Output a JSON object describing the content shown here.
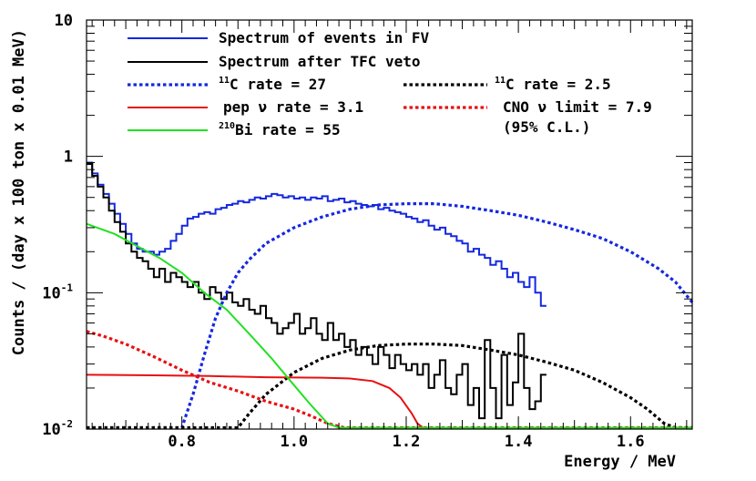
{
  "chart_data": {
    "type": "line",
    "xlabel": "Energy / MeV",
    "ylabel": "Counts / (day x 100 ton x 0.01 MeV)",
    "xlim": [
      0.63,
      1.71
    ],
    "ylim": [
      0.01,
      10
    ],
    "yscale": "log",
    "x_ticks": [
      {
        "value": 0.8,
        "label": "0.8"
      },
      {
        "value": 1.0,
        "label": "1.0"
      },
      {
        "value": 1.2,
        "label": "1.2"
      },
      {
        "value": 1.4,
        "label": "1.4"
      },
      {
        "value": 1.6,
        "label": "1.6"
      }
    ],
    "y_ticks": [
      {
        "value": 0.01,
        "base": "10",
        "exp": "-2"
      },
      {
        "value": 0.1,
        "base": "10",
        "exp": "-1"
      },
      {
        "value": 1,
        "base": "1",
        "exp": ""
      },
      {
        "value": 10,
        "base": "10",
        "exp": ""
      }
    ],
    "legend": [
      {
        "id": "fv",
        "text": "Spectrum of events in FV",
        "sup": "",
        "color": "#1428e0",
        "style": "solid"
      },
      {
        "id": "tfc",
        "text": "Spectrum after TFC veto",
        "sup": "",
        "color": "#000000",
        "style": "solid"
      },
      {
        "id": "c11",
        "sup": "11",
        "text": "C rate = 27",
        "color": "#1428e0",
        "style": "dotted"
      },
      {
        "id": "c11veto",
        "sup": "11",
        "text": "C rate = 2.5",
        "color": "#000000",
        "style": "dotted"
      },
      {
        "id": "pep",
        "text": "pep ν rate = 3.1",
        "sup": "",
        "color": "#e81010",
        "style": "solid"
      },
      {
        "id": "cno",
        "text": "CNO ν limit = 7.9",
        "sup": "",
        "color": "#e81010",
        "style": "dotted"
      },
      {
        "id": "cno2",
        "text": "(95% C.L.)",
        "sup": "",
        "color": "",
        "style": "none"
      },
      {
        "id": "bi210",
        "sup": "210",
        "text": "Bi rate = 55",
        "color": "#22e022",
        "style": "solid"
      }
    ],
    "series": [
      {
        "name": "Spectrum of events in FV",
        "kind": "step",
        "color": "#1428e0",
        "style": "solid",
        "x_start": 0.63,
        "bin": 0.01,
        "values": [
          0.9,
          0.75,
          0.62,
          0.53,
          0.45,
          0.38,
          0.32,
          0.27,
          0.23,
          0.21,
          0.2,
          0.2,
          0.19,
          0.2,
          0.21,
          0.24,
          0.27,
          0.31,
          0.35,
          0.36,
          0.38,
          0.39,
          0.38,
          0.41,
          0.42,
          0.44,
          0.45,
          0.47,
          0.46,
          0.48,
          0.5,
          0.49,
          0.51,
          0.53,
          0.52,
          0.5,
          0.51,
          0.49,
          0.5,
          0.48,
          0.5,
          0.49,
          0.51,
          0.47,
          0.48,
          0.49,
          0.46,
          0.47,
          0.45,
          0.44,
          0.43,
          0.44,
          0.41,
          0.42,
          0.4,
          0.39,
          0.38,
          0.36,
          0.35,
          0.33,
          0.34,
          0.31,
          0.29,
          0.3,
          0.27,
          0.26,
          0.24,
          0.23,
          0.2,
          0.21,
          0.19,
          0.18,
          0.16,
          0.17,
          0.15,
          0.13,
          0.14,
          0.12,
          0.11,
          0.13,
          0.1,
          0.08
        ]
      },
      {
        "name": "Spectrum after TFC veto",
        "kind": "step",
        "color": "#000000",
        "style": "solid",
        "x_start": 0.63,
        "bin": 0.01,
        "values": [
          0.88,
          0.72,
          0.6,
          0.5,
          0.4,
          0.33,
          0.28,
          0.23,
          0.2,
          0.18,
          0.17,
          0.15,
          0.13,
          0.15,
          0.12,
          0.14,
          0.13,
          0.12,
          0.11,
          0.12,
          0.1,
          0.09,
          0.11,
          0.1,
          0.09,
          0.1,
          0.085,
          0.08,
          0.09,
          0.075,
          0.07,
          0.08,
          0.065,
          0.06,
          0.05,
          0.055,
          0.06,
          0.07,
          0.05,
          0.055,
          0.065,
          0.05,
          0.045,
          0.06,
          0.045,
          0.05,
          0.04,
          0.045,
          0.035,
          0.04,
          0.035,
          0.03,
          0.04,
          0.035,
          0.028,
          0.035,
          0.03,
          0.027,
          0.03,
          0.025,
          0.03,
          0.02,
          0.025,
          0.032,
          0.02,
          0.018,
          0.025,
          0.03,
          0.015,
          0.02,
          0.012,
          0.045,
          0.02,
          0.012,
          0.035,
          0.015,
          0.022,
          0.05,
          0.02,
          0.014,
          0.016,
          0.025
        ]
      },
      {
        "name": "11C rate = 27",
        "kind": "line",
        "color": "#1428e0",
        "style": "dotted",
        "points": [
          [
            0.63,
            0.01
          ],
          [
            0.8,
            0.01
          ],
          [
            0.82,
            0.018
          ],
          [
            0.84,
            0.035
          ],
          [
            0.86,
            0.065
          ],
          [
            0.88,
            0.1
          ],
          [
            0.9,
            0.14
          ],
          [
            0.92,
            0.175
          ],
          [
            0.95,
            0.23
          ],
          [
            1.0,
            0.3
          ],
          [
            1.05,
            0.36
          ],
          [
            1.1,
            0.41
          ],
          [
            1.15,
            0.44
          ],
          [
            1.2,
            0.45
          ],
          [
            1.25,
            0.45
          ],
          [
            1.3,
            0.43
          ],
          [
            1.35,
            0.4
          ],
          [
            1.4,
            0.37
          ],
          [
            1.45,
            0.33
          ],
          [
            1.5,
            0.29
          ],
          [
            1.55,
            0.25
          ],
          [
            1.6,
            0.2
          ],
          [
            1.65,
            0.15
          ],
          [
            1.68,
            0.12
          ],
          [
            1.71,
            0.085
          ]
        ]
      },
      {
        "name": "11C rate = 2.5",
        "kind": "line",
        "color": "#000000",
        "style": "dotted",
        "points": [
          [
            0.63,
            0.01
          ],
          [
            0.9,
            0.01
          ],
          [
            0.92,
            0.013
          ],
          [
            0.95,
            0.018
          ],
          [
            1.0,
            0.026
          ],
          [
            1.05,
            0.033
          ],
          [
            1.1,
            0.038
          ],
          [
            1.15,
            0.041
          ],
          [
            1.2,
            0.042
          ],
          [
            1.25,
            0.042
          ],
          [
            1.3,
            0.041
          ],
          [
            1.35,
            0.038
          ],
          [
            1.4,
            0.035
          ],
          [
            1.45,
            0.031
          ],
          [
            1.5,
            0.027
          ],
          [
            1.55,
            0.022
          ],
          [
            1.6,
            0.017
          ],
          [
            1.63,
            0.014
          ],
          [
            1.66,
            0.011
          ],
          [
            1.68,
            0.01
          ],
          [
            1.71,
            0.01
          ]
        ]
      },
      {
        "name": "pep ν rate = 3.1",
        "kind": "line",
        "color": "#e81010",
        "style": "solid",
        "points": [
          [
            0.63,
            0.025
          ],
          [
            0.75,
            0.0248
          ],
          [
            0.85,
            0.0245
          ],
          [
            0.95,
            0.024
          ],
          [
            1.05,
            0.0238
          ],
          [
            1.1,
            0.0235
          ],
          [
            1.14,
            0.0225
          ],
          [
            1.17,
            0.02
          ],
          [
            1.19,
            0.017
          ],
          [
            1.21,
            0.013
          ],
          [
            1.22,
            0.011
          ],
          [
            1.23,
            0.01
          ],
          [
            1.71,
            0.01
          ]
        ]
      },
      {
        "name": "CNO ν limit = 7.9",
        "kind": "line",
        "color": "#e81010",
        "style": "dotted",
        "points": [
          [
            0.63,
            0.052
          ],
          [
            0.66,
            0.048
          ],
          [
            0.7,
            0.042
          ],
          [
            0.75,
            0.034
          ],
          [
            0.8,
            0.027
          ],
          [
            0.85,
            0.022
          ],
          [
            0.9,
            0.019
          ],
          [
            0.95,
            0.016
          ],
          [
            1.0,
            0.014
          ],
          [
            1.03,
            0.0125
          ],
          [
            1.06,
            0.011
          ],
          [
            1.09,
            0.01
          ],
          [
            1.71,
            0.01
          ]
        ]
      },
      {
        "name": "210Bi rate = 55",
        "kind": "line",
        "color": "#22e022",
        "style": "solid",
        "points": [
          [
            0.63,
            0.32
          ],
          [
            0.68,
            0.27
          ],
          [
            0.72,
            0.22
          ],
          [
            0.76,
            0.18
          ],
          [
            0.8,
            0.14
          ],
          [
            0.84,
            0.1
          ],
          [
            0.88,
            0.075
          ],
          [
            0.92,
            0.05
          ],
          [
            0.96,
            0.033
          ],
          [
            1.0,
            0.021
          ],
          [
            1.03,
            0.015
          ],
          [
            1.06,
            0.011
          ],
          [
            1.08,
            0.01
          ],
          [
            1.71,
            0.01
          ]
        ]
      }
    ]
  }
}
